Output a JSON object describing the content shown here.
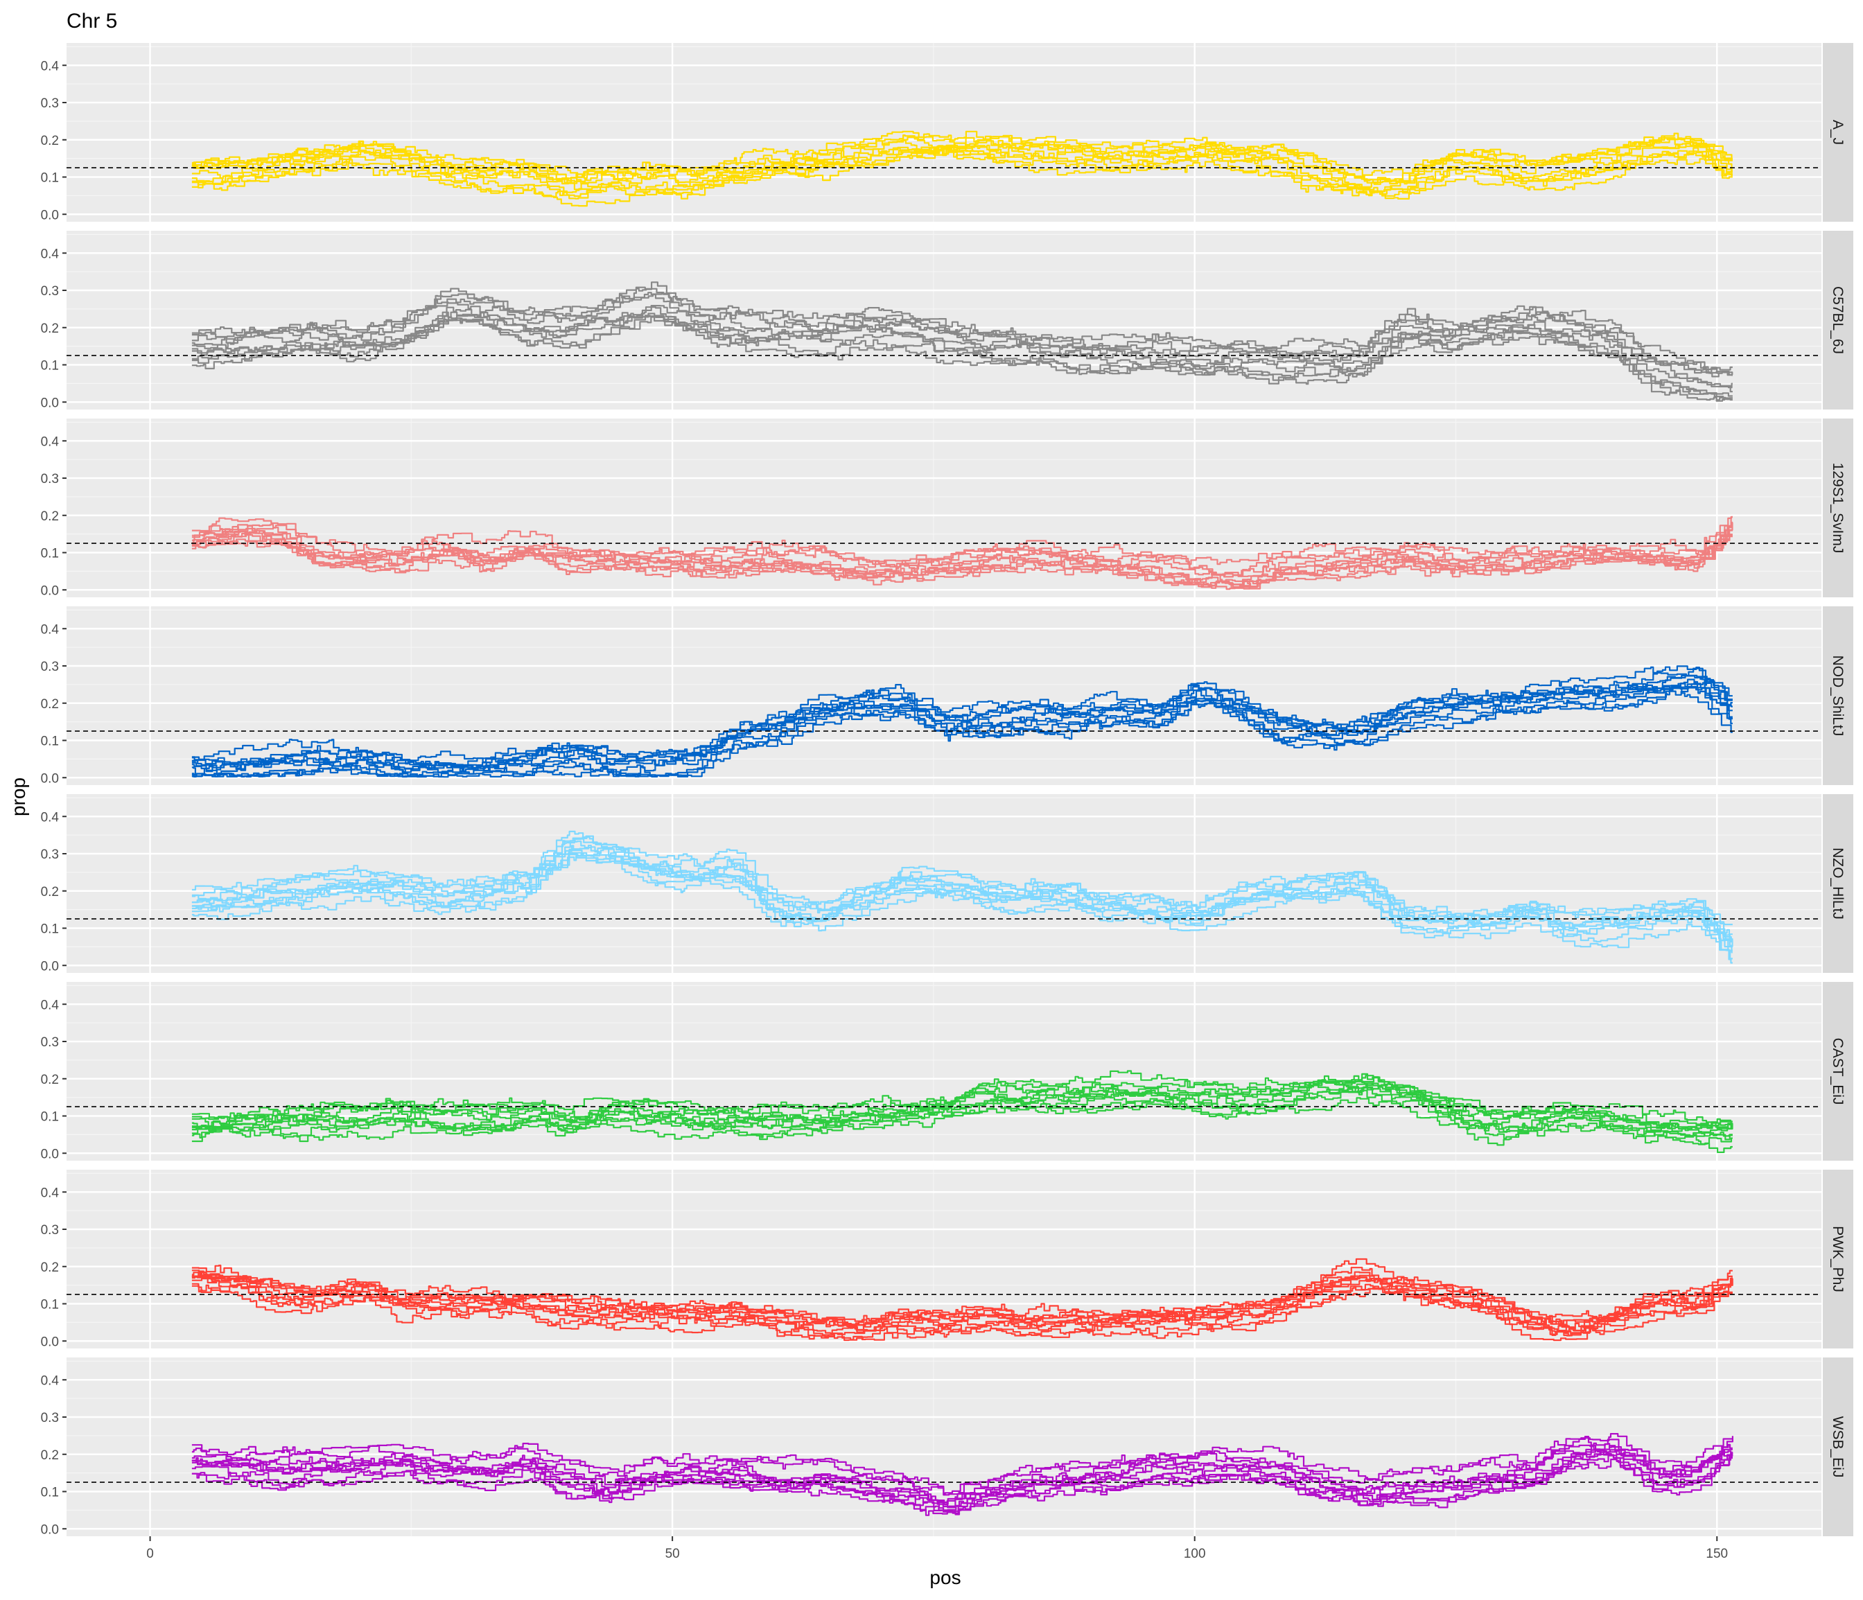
{
  "chart_data": {
    "type": "line",
    "title": "Chr 5",
    "xlabel": "pos",
    "ylabel": "prop",
    "xlim": [
      -8,
      160
    ],
    "ylim": [
      -0.02,
      0.46
    ],
    "x_ticks": [
      0,
      50,
      100,
      150
    ],
    "y_ticks": [
      0.0,
      0.1,
      0.2,
      0.3,
      0.4
    ],
    "y_tick_labels": [
      "0.0",
      "0.1",
      "0.2",
      "0.3",
      "0.4"
    ],
    "reference_line": 0.125,
    "grid": true,
    "legend": "none",
    "lines_per_panel": 10,
    "x_grid": [
      4,
      8,
      12,
      16,
      20,
      24,
      28,
      32,
      36,
      40,
      44,
      48,
      52,
      56,
      60,
      64,
      68,
      72,
      76,
      80,
      84,
      88,
      92,
      96,
      100,
      104,
      108,
      112,
      116,
      120,
      124,
      128,
      132,
      136,
      140,
      144,
      148,
      151.5
    ],
    "panels": [
      {
        "strain": "A_J",
        "color": "#FFDC00",
        "line_spread": 0.035,
        "profile": [
          0.11,
          0.12,
          0.13,
          0.15,
          0.17,
          0.15,
          0.12,
          0.11,
          0.11,
          0.07,
          0.09,
          0.1,
          0.09,
          0.12,
          0.13,
          0.14,
          0.16,
          0.18,
          0.18,
          0.19,
          0.17,
          0.16,
          0.15,
          0.15,
          0.17,
          0.16,
          0.15,
          0.1,
          0.07,
          0.08,
          0.13,
          0.13,
          0.11,
          0.13,
          0.14,
          0.18,
          0.18,
          0.12
        ]
      },
      {
        "strain": "C57BL_6J",
        "color": "#888888",
        "line_spread": 0.045,
        "profile": [
          0.14,
          0.15,
          0.17,
          0.17,
          0.16,
          0.18,
          0.25,
          0.24,
          0.2,
          0.2,
          0.23,
          0.26,
          0.22,
          0.2,
          0.19,
          0.18,
          0.2,
          0.19,
          0.17,
          0.15,
          0.14,
          0.13,
          0.13,
          0.13,
          0.12,
          0.12,
          0.11,
          0.11,
          0.11,
          0.19,
          0.17,
          0.2,
          0.21,
          0.19,
          0.15,
          0.08,
          0.06,
          0.035
        ]
      },
      {
        "strain": "129S1_SvImJ",
        "color": "#F08080",
        "line_spread": 0.03,
        "profile": [
          0.14,
          0.16,
          0.15,
          0.1,
          0.09,
          0.09,
          0.12,
          0.09,
          0.12,
          0.09,
          0.09,
          0.08,
          0.08,
          0.08,
          0.09,
          0.08,
          0.06,
          0.06,
          0.07,
          0.09,
          0.1,
          0.09,
          0.08,
          0.07,
          0.04,
          0.04,
          0.07,
          0.08,
          0.08,
          0.1,
          0.08,
          0.08,
          0.08,
          0.09,
          0.1,
          0.1,
          0.09,
          0.19
        ]
      },
      {
        "strain": "NOD_ShiLtJ",
        "color": "#0064C9",
        "line_spread": 0.035,
        "profile": [
          0.03,
          0.03,
          0.04,
          0.05,
          0.05,
          0.03,
          0.03,
          0.03,
          0.04,
          0.06,
          0.04,
          0.04,
          0.05,
          0.12,
          0.14,
          0.18,
          0.2,
          0.2,
          0.15,
          0.15,
          0.16,
          0.16,
          0.18,
          0.16,
          0.22,
          0.19,
          0.13,
          0.12,
          0.12,
          0.18,
          0.19,
          0.2,
          0.21,
          0.22,
          0.22,
          0.24,
          0.26,
          0.18
        ]
      },
      {
        "strain": "NZO_HlLtJ",
        "color": "#7FD8FF",
        "line_spread": 0.04,
        "profile": [
          0.17,
          0.18,
          0.2,
          0.21,
          0.22,
          0.21,
          0.19,
          0.2,
          0.23,
          0.33,
          0.31,
          0.26,
          0.24,
          0.26,
          0.15,
          0.14,
          0.18,
          0.23,
          0.22,
          0.19,
          0.19,
          0.19,
          0.16,
          0.15,
          0.13,
          0.19,
          0.2,
          0.21,
          0.22,
          0.13,
          0.12,
          0.12,
          0.15,
          0.11,
          0.12,
          0.14,
          0.15,
          0.05
        ]
      },
      {
        "strain": "CAST_EiJ",
        "color": "#2ECC40",
        "line_spread": 0.035,
        "profile": [
          0.07,
          0.08,
          0.08,
          0.09,
          0.1,
          0.11,
          0.1,
          0.09,
          0.11,
          0.08,
          0.11,
          0.11,
          0.09,
          0.09,
          0.09,
          0.09,
          0.1,
          0.11,
          0.12,
          0.15,
          0.15,
          0.15,
          0.17,
          0.17,
          0.15,
          0.14,
          0.15,
          0.17,
          0.18,
          0.16,
          0.12,
          0.08,
          0.09,
          0.1,
          0.09,
          0.07,
          0.06,
          0.05
        ]
      },
      {
        "strain": "PWK_PhJ",
        "color": "#FF4136",
        "line_spread": 0.03,
        "profile": [
          0.17,
          0.16,
          0.13,
          0.12,
          0.14,
          0.1,
          0.11,
          0.1,
          0.1,
          0.08,
          0.08,
          0.08,
          0.07,
          0.07,
          0.06,
          0.04,
          0.03,
          0.05,
          0.05,
          0.06,
          0.05,
          0.05,
          0.05,
          0.05,
          0.06,
          0.07,
          0.09,
          0.14,
          0.17,
          0.14,
          0.12,
          0.09,
          0.04,
          0.03,
          0.06,
          0.1,
          0.1,
          0.16
        ]
      },
      {
        "strain": "WSB_EiJ",
        "color": "#B10DC9",
        "line_spread": 0.045,
        "profile": [
          0.18,
          0.17,
          0.16,
          0.16,
          0.17,
          0.18,
          0.15,
          0.15,
          0.18,
          0.13,
          0.11,
          0.14,
          0.15,
          0.14,
          0.13,
          0.14,
          0.12,
          0.1,
          0.06,
          0.1,
          0.12,
          0.13,
          0.13,
          0.15,
          0.16,
          0.16,
          0.15,
          0.11,
          0.09,
          0.1,
          0.11,
          0.13,
          0.14,
          0.2,
          0.21,
          0.13,
          0.14,
          0.22
        ]
      }
    ]
  }
}
